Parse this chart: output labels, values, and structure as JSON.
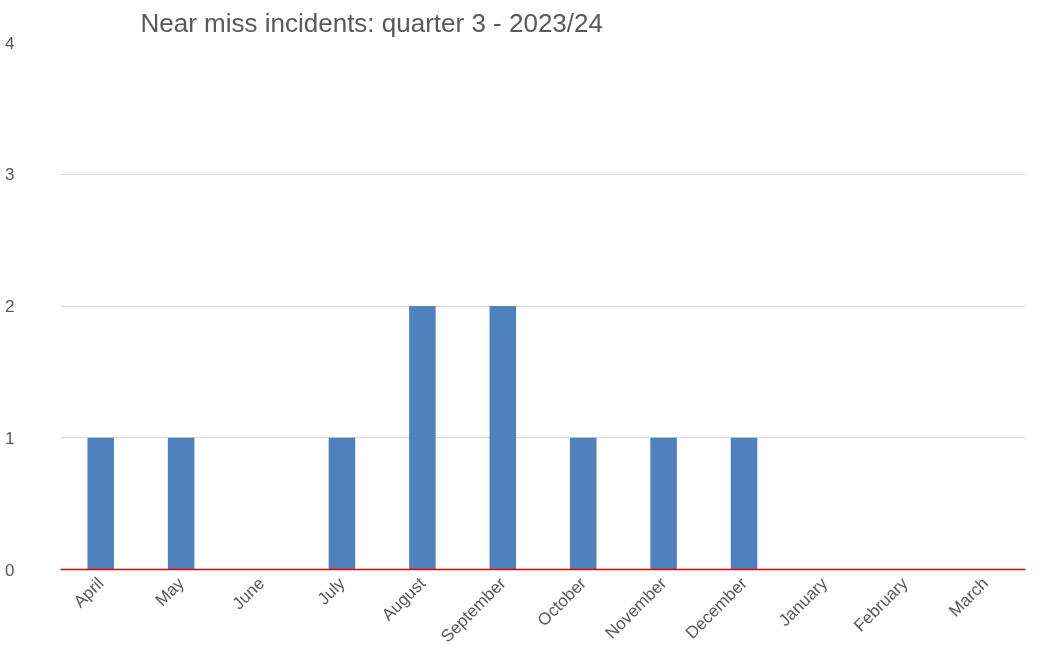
{
  "chart_data": {
    "type": "bar",
    "title": "Near miss incidents: quarter 3 - 2023/24",
    "categories": [
      "April",
      "May",
      "June",
      "July",
      "August",
      "September",
      "October",
      "November",
      "December",
      "January",
      "February",
      "March"
    ],
    "values": [
      1,
      1,
      0,
      1,
      2,
      2,
      1,
      1,
      1,
      0,
      0,
      0
    ],
    "color": "#4f81bd",
    "ylim": [
      0,
      4
    ],
    "yticks": [
      0,
      1,
      2,
      3,
      4
    ],
    "grid": "y"
  }
}
